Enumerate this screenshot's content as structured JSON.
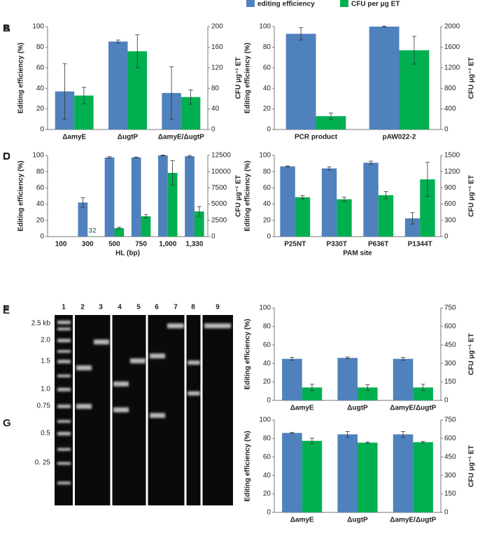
{
  "legend": [
    {
      "name": "editing efficiency",
      "color": "#4f81bd"
    },
    {
      "name": "CFU per μg ET",
      "color": "#00b050"
    }
  ],
  "left_label": "Editing efficiency (%)",
  "right_label": "CFU μg⁻¹ ET",
  "chart_data": [
    {
      "type": "bar",
      "panel": "A",
      "categories": [
        "ΔamyE",
        "ΔugtP",
        "ΔamyE/ΔugtP"
      ],
      "ylim": [
        0,
        100
      ],
      "yticks": [
        0,
        20,
        40,
        60,
        80,
        100
      ],
      "y2lim": [
        0,
        200
      ],
      "y2ticks": [
        0,
        40,
        80,
        120,
        160,
        200
      ],
      "series": [
        {
          "color": "#4f81bd",
          "values": [
            37,
            85.5,
            35.5
          ],
          "errors": [
            27,
            1.5,
            25.5
          ]
        },
        {
          "color": "#00b050",
          "axis": "y2",
          "values": [
            66,
            152,
            63
          ],
          "errors": [
            16,
            32,
            14
          ]
        }
      ]
    },
    {
      "type": "bar",
      "panel": "B",
      "categories": [
        "PCR product",
        "pAW022-2"
      ],
      "ylim": [
        0,
        100
      ],
      "yticks": [
        0,
        20,
        40,
        60,
        80,
        100
      ],
      "y2lim": [
        0,
        2000
      ],
      "y2ticks": [
        0,
        400,
        800,
        1200,
        1600,
        2000
      ],
      "series": [
        {
          "color": "#4f81bd",
          "values": [
            93,
            100
          ],
          "errors": [
            6,
            0.5
          ]
        },
        {
          "color": "#00b050",
          "axis": "y2",
          "values": [
            260,
            1540
          ],
          "errors": [
            60,
            270
          ]
        }
      ]
    },
    {
      "type": "bar",
      "panel": "C",
      "xlabel": "HL (bp)",
      "categories": [
        "100",
        "300",
        "500",
        "750",
        "1,000",
        "1,330"
      ],
      "ylim": [
        0,
        100
      ],
      "yticks": [
        0,
        20,
        40,
        60,
        80,
        100
      ],
      "y2lim": [
        0,
        12500
      ],
      "y2ticks": [
        0,
        2500,
        5000,
        7500,
        10000,
        12500
      ],
      "series": [
        {
          "color": "#4f81bd",
          "values": [
            null,
            42,
            97.5,
            97.5,
            100,
            99
          ],
          "errors": [
            null,
            6,
            1,
            0.5,
            0.5,
            1
          ]
        },
        {
          "color": "#00b050",
          "axis": "y2",
          "values": [
            null,
            32,
            1310,
            3125,
            9810,
            3875
          ],
          "errors": [
            null,
            null,
            120,
            250,
            1875,
            750
          ],
          "labeled": [
            1
          ]
        }
      ]
    },
    {
      "type": "bar",
      "panel": "D",
      "xlabel": "PAM site",
      "categories": [
        "P25NT",
        "P330T",
        "P636T",
        "P1344T"
      ],
      "ylim": [
        0,
        100
      ],
      "yticks": [
        0,
        20,
        40,
        60,
        80,
        100
      ],
      "y2lim": [
        0,
        1500
      ],
      "y2ticks": [
        0,
        300,
        600,
        900,
        1200,
        1500
      ],
      "series": [
        {
          "color": "#4f81bd",
          "values": [
            86.5,
            84,
            91,
            22.5
          ],
          "errors": [
            0.5,
            2,
            2,
            7
          ]
        },
        {
          "color": "#00b050",
          "axis": "y2",
          "values": [
            727,
            690,
            765,
            1057
          ],
          "errors": [
            30,
            37,
            67,
            315
          ]
        }
      ]
    },
    {
      "type": "bar",
      "panel": "F",
      "categories": [
        "ΔamyE",
        "ΔugtP",
        "ΔamyE/ΔugtP"
      ],
      "ylim": [
        0,
        100
      ],
      "yticks": [
        0,
        20,
        40,
        60,
        80,
        100
      ],
      "y2lim": [
        0,
        750
      ],
      "y2ticks": [
        0,
        150,
        300,
        450,
        600,
        750
      ],
      "series": [
        {
          "color": "#4f81bd",
          "values": [
            45,
            46,
            45
          ],
          "errors": [
            1.5,
            1,
            1.5
          ]
        },
        {
          "color": "#00b050",
          "axis": "y2",
          "values": [
            105,
            105,
            105
          ],
          "errors": [
            26,
            22,
            26
          ]
        }
      ]
    },
    {
      "type": "bar",
      "panel": "G",
      "categories": [
        "ΔamyE",
        "ΔugtP",
        "ΔamyE/ΔugtP"
      ],
      "ylim": [
        0,
        100
      ],
      "yticks": [
        0,
        20,
        40,
        60,
        80,
        100
      ],
      "y2lim": [
        0,
        750
      ],
      "y2ticks": [
        0,
        150,
        300,
        450,
        600,
        750
      ],
      "series": [
        {
          "color": "#4f81bd",
          "values": [
            86,
            84.5,
            84.5
          ],
          "errors": [
            0.5,
            3,
            3
          ]
        },
        {
          "color": "#00b050",
          "axis": "y2",
          "values": [
            581,
            566,
            570
          ],
          "errors": [
            22,
            7,
            7
          ]
        }
      ]
    }
  ],
  "gel": {
    "panel": "E",
    "lanes": [
      "1",
      "2",
      "3",
      "4",
      "5",
      "6",
      "7",
      "8",
      "9"
    ],
    "ladder": [
      "2.5 kb",
      "2.0",
      "1.5",
      "1.0",
      "0.75",
      "0.5",
      "0. 25"
    ]
  }
}
